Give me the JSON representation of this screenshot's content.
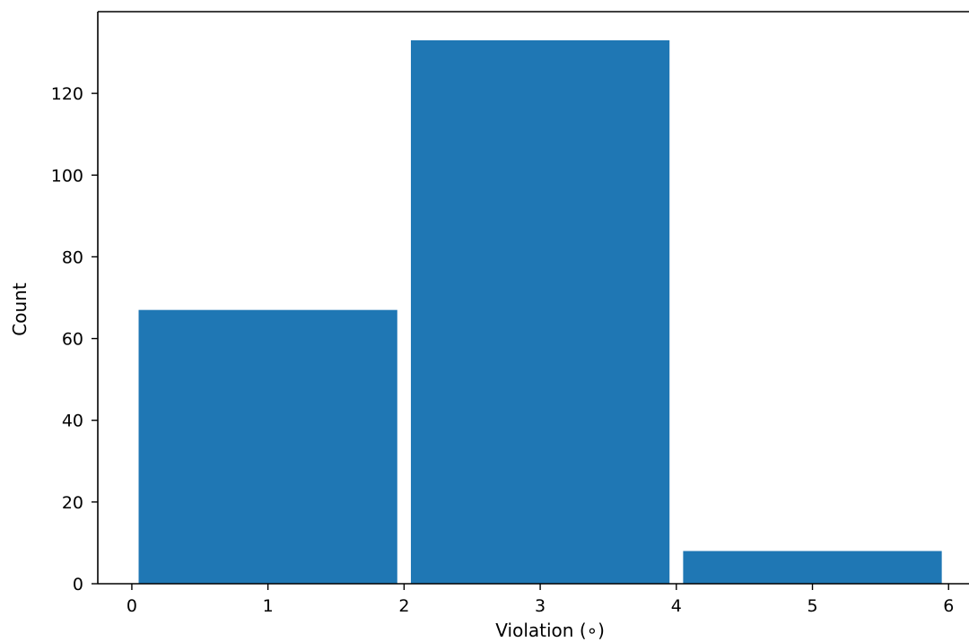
{
  "chart_data": {
    "type": "bar",
    "title": "",
    "xlabel": "Violation (∘)",
    "ylabel": "Count",
    "bins": [
      {
        "x_start": 0,
        "x_end": 2,
        "count": 67
      },
      {
        "x_start": 2,
        "x_end": 4,
        "count": 133
      },
      {
        "x_start": 4,
        "x_end": 6,
        "count": 8
      }
    ],
    "xlim": [
      -0.25,
      6.15
    ],
    "ylim": [
      0,
      140
    ],
    "xticks": [
      0,
      1,
      2,
      3,
      4,
      5,
      6
    ],
    "yticks": [
      0,
      20,
      40,
      60,
      80,
      100,
      120
    ],
    "bar_color": "#1f77b4",
    "grid": false,
    "legend": "none"
  }
}
